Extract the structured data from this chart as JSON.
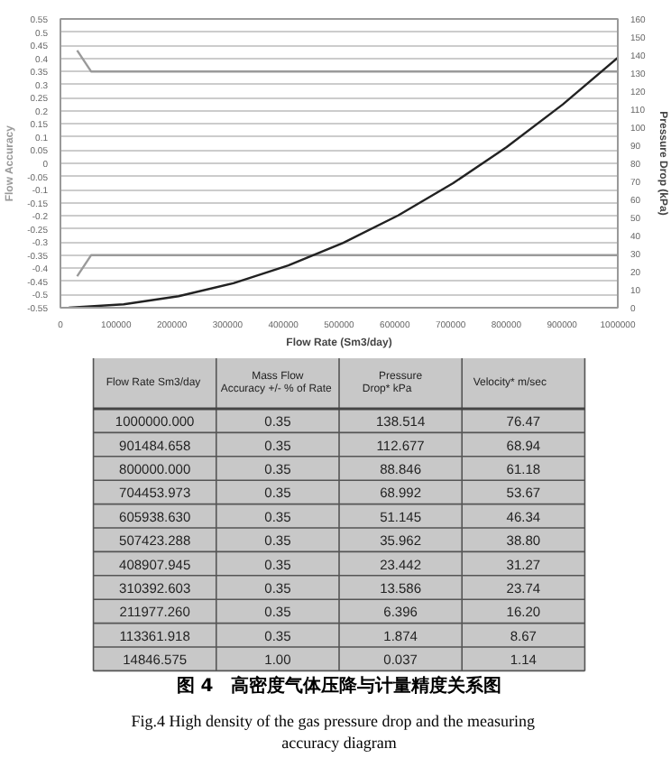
{
  "chart_data": [
    {
      "type": "line",
      "xlabel": "Flow Rate (Sm3/day)",
      "ylabel": "Flow Accuracy",
      "y2label": "Pressure Drop (kPa)",
      "xlim": [
        0,
        1000000
      ],
      "xticks": [
        0,
        100000,
        200000,
        300000,
        400000,
        500000,
        600000,
        700000,
        800000,
        900000,
        1000000
      ],
      "ylim": [
        -0.55,
        0.55
      ],
      "yticks": [
        -0.55,
        -0.5,
        -0.45,
        -0.4,
        -0.35,
        -0.3,
        -0.25,
        -0.2,
        -0.15,
        -0.1,
        -0.05,
        0,
        0.05,
        0.1,
        0.15,
        0.2,
        0.25,
        0.3,
        0.35,
        0.4,
        0.45,
        0.5,
        0.55
      ],
      "y2lim": [
        0,
        160
      ],
      "y2ticks": [
        0,
        10,
        20,
        30,
        40,
        50,
        60,
        70,
        80,
        90,
        100,
        110,
        120,
        130,
        140,
        150,
        160
      ],
      "grid": "y",
      "series": [
        {
          "color": "#9a9a9a",
          "x": [
            30000,
            55000,
            1000000
          ],
          "values": [
            0.43,
            0.35,
            0.35
          ]
        },
        {
          "color": "#9a9a9a",
          "x": [
            30000,
            55000,
            1000000
          ],
          "values": [
            -0.43,
            -0.35,
            -0.35
          ]
        },
        {
          "color": "#222222",
          "axis": "y2",
          "x": [
            14846.575,
            113361.918,
            211977.26,
            310392.603,
            408907.945,
            507423.288,
            605938.63,
            704453.973,
            800000,
            901484.658,
            1000000
          ],
          "values": [
            0.037,
            1.874,
            6.396,
            13.586,
            23.442,
            35.962,
            51.145,
            68.992,
            88.846,
            112.677,
            138.514
          ]
        }
      ]
    },
    {
      "type": "other",
      "categories": [
        "Flow Rate  Sm3/day",
        "Mass Flow\nAccuracy +/- % of  Rate",
        "Pressure\nDrop*          kPa",
        "Velocity*          m/sec"
      ],
      "cell_labels": [
        [
          "1000000.000",
          "0.35",
          "138.514",
          "76.47"
        ],
        [
          "901484.658",
          "0.35",
          "112.677",
          "68.94"
        ],
        [
          "800000.000",
          "0.35",
          "88.846",
          "61.18"
        ],
        [
          "704453.973",
          "0.35",
          "68.992",
          "53.67"
        ],
        [
          "605938.630",
          "0.35",
          "51.145",
          "46.34"
        ],
        [
          "507423.288",
          "0.35",
          "35.962",
          "38.80"
        ],
        [
          "408907.945",
          "0.35",
          "23.442",
          "31.27"
        ],
        [
          "310392.603",
          "0.35",
          "13.586",
          "23.74"
        ],
        [
          "211977.260",
          "0.35",
          "6.396",
          "16.20"
        ],
        [
          "113361.918",
          "0.35",
          "1.874",
          "8.67"
        ],
        [
          "14846.575",
          "1.00",
          "0.037",
          "1.14"
        ]
      ],
      "annotations": [
        "图 4　高密度气体压降与计量精度关系图",
        "Fig.4    High density of the gas pressure drop and the measuring accuracy diagram"
      ]
    }
  ]
}
